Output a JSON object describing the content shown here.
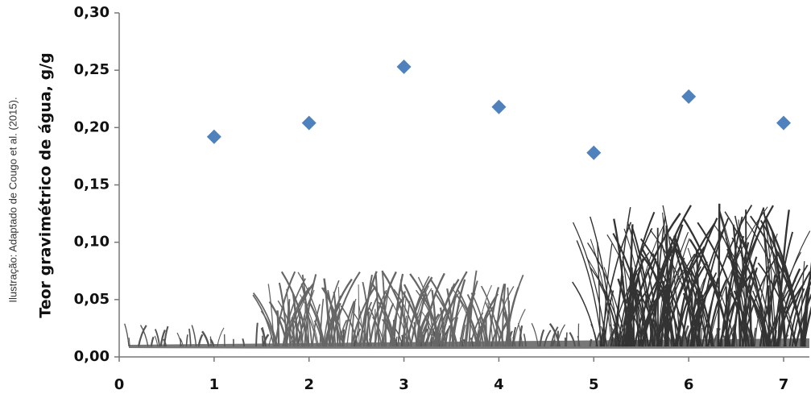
{
  "chart_data": {
    "type": "scatter",
    "y_label": "Teor gravimétrico de  água, g/g",
    "credit": "Ilustração:  Adaptado de Cougo et al. (2015).",
    "x": [
      1,
      2,
      3,
      4,
      5,
      6,
      7
    ],
    "values": [
      0.192,
      0.204,
      0.253,
      0.218,
      0.178,
      0.227,
      0.204
    ],
    "color": "#4f81bd",
    "xlim": [
      0,
      7
    ],
    "xticks": [
      0,
      1,
      2,
      3,
      4,
      5,
      6,
      7
    ],
    "ylim": [
      0,
      0.3
    ],
    "yticks": [
      {
        "value": 0,
        "label": "0,00"
      },
      {
        "value": 0.05,
        "label": "0,05"
      },
      {
        "value": 0.1,
        "label": "0,10"
      },
      {
        "value": 0.15,
        "label": "0,15"
      },
      {
        "value": 0.2,
        "label": "0,20"
      },
      {
        "value": 0.25,
        "label": "0,25"
      },
      {
        "value": 0.3,
        "label": "0,30"
      }
    ]
  }
}
